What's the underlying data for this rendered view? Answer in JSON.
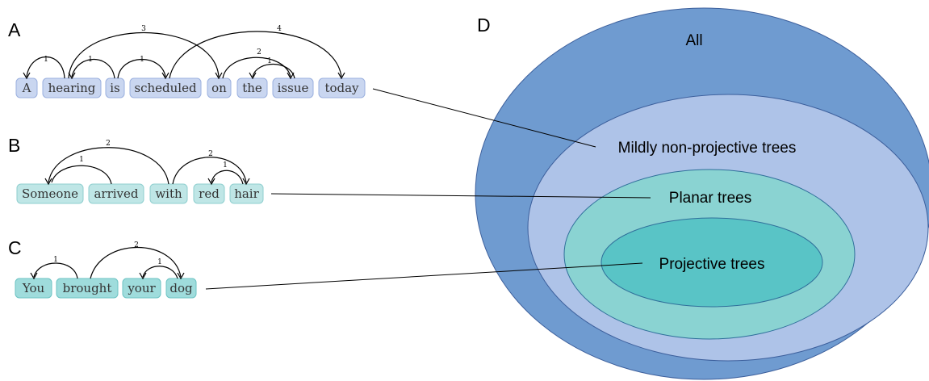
{
  "panels": {
    "A": {
      "letter": "A",
      "words": [
        "A",
        "hearing",
        "is",
        "scheduled",
        "on",
        "the",
        "issue",
        "today"
      ],
      "arc_labels": [
        "1",
        "1",
        "3",
        "1",
        "4",
        "2",
        "1"
      ],
      "box_fill": "#c9d6f0",
      "box_stroke": "#9bb0df"
    },
    "B": {
      "letter": "B",
      "words": [
        "Someone",
        "arrived",
        "with",
        "red",
        "hair"
      ],
      "arc_labels": [
        "2",
        "1",
        "2",
        "1"
      ],
      "box_fill": "#bfe6e6",
      "box_stroke": "#8fcfcf"
    },
    "C": {
      "letter": "C",
      "words": [
        "You",
        "brought",
        "your",
        "dog"
      ],
      "arc_labels": [
        "1",
        "2",
        "1"
      ],
      "box_fill": "#9fdcdc",
      "box_stroke": "#6cc3c3"
    }
  },
  "venn": {
    "letter": "D",
    "sets": [
      {
        "label": "All",
        "fill": "#6f9bd0",
        "stroke": "#3c5f9c"
      },
      {
        "label": "Mildly non-projective trees",
        "fill": "#aec3e8",
        "stroke": "#3c5f9c"
      },
      {
        "label": "Planar trees",
        "fill": "#8ad3d2",
        "stroke": "#2f6f9a"
      },
      {
        "label": "Projective trees",
        "fill": "#59c4c6",
        "stroke": "#2f6f9a"
      }
    ]
  }
}
